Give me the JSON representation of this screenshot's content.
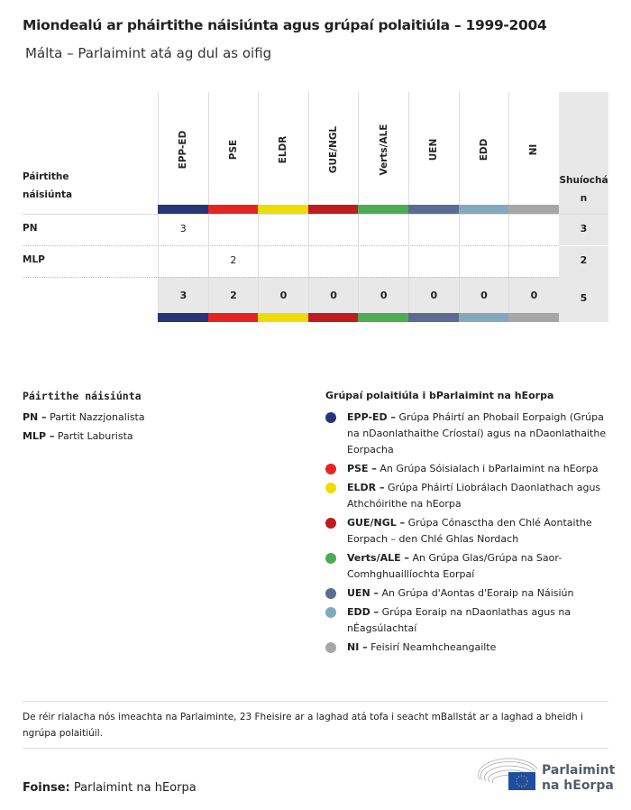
{
  "title": "Miondealú ar pháirtithe náisiúnta agus grúpaí polaitiúla – 1999-2004",
  "subtitle": "Málta – Parlaimint atá ag dul as oifig",
  "table": {
    "party_header": [
      "Páirtithe",
      "náisiúnta"
    ],
    "total_header": [
      "Shuíochá",
      "n"
    ],
    "groups": [
      {
        "code": "EPP-ED",
        "color": "#27367a"
      },
      {
        "code": "PSE",
        "color": "#e52421"
      },
      {
        "code": "ELDR",
        "color": "#eddd00"
      },
      {
        "code": "GUE/NGL",
        "color": "#c01b1d"
      },
      {
        "code": "Verts/ALE",
        "color": "#4dab54"
      },
      {
        "code": "UEN",
        "color": "#5b6b92"
      },
      {
        "code": "EDD",
        "color": "#83a9be"
      },
      {
        "code": "NI",
        "color": "#a6a6a6"
      }
    ],
    "rows": [
      {
        "party": "PN",
        "values": [
          "3",
          "",
          "",
          "",
          "",
          "",
          "",
          ""
        ],
        "total": "3"
      },
      {
        "party": "MLP",
        "values": [
          "",
          "2",
          "",
          "",
          "",
          "",
          "",
          ""
        ],
        "total": "2"
      }
    ],
    "totals": [
      "3",
      "2",
      "0",
      "0",
      "0",
      "0",
      "0",
      "0"
    ],
    "grand_total": "5"
  },
  "legend_parties": {
    "heading": "Páirtithe náisiúnta",
    "items": [
      {
        "code": "PN –",
        "name": "Partit Nazzjonalista"
      },
      {
        "code": "MLP –",
        "name": "Partit Laburista"
      }
    ]
  },
  "legend_groups": {
    "heading": "Grúpaí polaitiúla i bParlaimint na hEorpa",
    "items": [
      {
        "code": "EPP-ED –",
        "name": "Grúpa Pháirtí an Phobail Eorpaigh (Grúpa na nDaonlathaithe Críostaí) agus na nDaonlathaithe Eorpacha"
      },
      {
        "code": "PSE –",
        "name": "An Grúpa Sóisialach i bParlaimint na hEorpa"
      },
      {
        "code": "ELDR –",
        "name": "Grúpa Pháirtí Liobrálach Daonlathach agus Athchóirithe na hEorpa"
      },
      {
        "code": "GUE/NGL –",
        "name": "Grúpa Cónasctha den Chlé Aontaithe Eorpach – den Chlé Ghlas Nordach"
      },
      {
        "code": "Verts/ALE –",
        "name": "An Grúpa Glas/Grúpa na Saor-Comhghuaillíochta Eorpaí"
      },
      {
        "code": "UEN –",
        "name": "An Grúpa d'Aontas d'Eoraip na Náisiún"
      },
      {
        "code": "EDD –",
        "name": "Grúpa Eoraip na nDaonlathas agus na nÉagsúlachtaí"
      },
      {
        "code": "NI –",
        "name": "Feisirí Neamhcheangailte"
      }
    ]
  },
  "note": "De réir rialacha nós imeachta na Parlaiminte, 23 Fheisire ar a laghad atá tofa i seacht mBallstát ar a laghad a bheidh i ngrúpa polaitiúil.",
  "source": {
    "label": "Foinse:",
    "value": "Parlaimint na hEorpa"
  },
  "logo": {
    "line1": "Parlaimint",
    "line2": "na hEorpa"
  }
}
